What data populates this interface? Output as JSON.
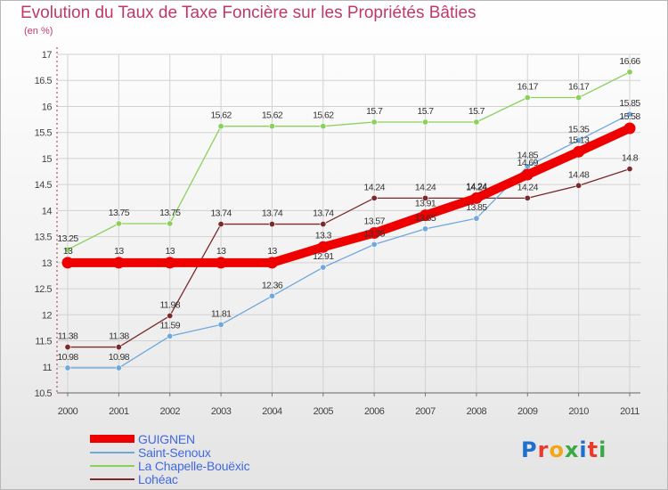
{
  "title": "Evolution du Taux de Taxe Foncière sur les Propriétés Bâties",
  "unit_label": "(en %)",
  "logo": "Proxiti",
  "chart_data": {
    "type": "line",
    "x": [
      2000,
      2001,
      2002,
      2003,
      2004,
      2005,
      2006,
      2007,
      2008,
      2009,
      2010,
      2011
    ],
    "ylim": [
      10.5,
      17
    ],
    "yticks": [
      "10.5",
      "11",
      "11.5",
      "12",
      "12.5",
      "13",
      "13.5",
      "14",
      "14.5",
      "15",
      "15.5",
      "16",
      "16.5",
      "17"
    ],
    "grid": true,
    "legend_position": "bottom-left",
    "series": [
      {
        "name": "GUIGNEN",
        "color": "#ee0000",
        "values": [
          13,
          13,
          13,
          13,
          13,
          13.3,
          13.57,
          13.91,
          14.24,
          14.69,
          15.13,
          15.58
        ],
        "labels": [
          "13",
          "13",
          "13",
          "13",
          "13",
          "13.3",
          "13.57",
          "13.91",
          "14.24",
          "14.69",
          "15.13",
          "15.58"
        ]
      },
      {
        "name": "Saint-Senoux",
        "color": "#6fa8dc",
        "values": [
          10.98,
          10.98,
          11.59,
          11.81,
          12.36,
          12.91,
          13.35,
          13.65,
          13.85,
          14.85,
          15.35,
          15.85
        ],
        "labels": [
          "10.98",
          "10.98",
          "11.59",
          "11.81",
          "12.36",
          "12.91",
          "13.35",
          "13.65",
          "13.85",
          "14.85",
          "15.35",
          "15.85"
        ]
      },
      {
        "name": "La Chapelle-Bouëxic",
        "color": "#8ad15c",
        "values": [
          13.25,
          13.75,
          13.75,
          15.62,
          15.62,
          15.62,
          15.7,
          15.7,
          15.7,
          16.17,
          16.17,
          16.66
        ],
        "labels": [
          "13.25",
          "13.75",
          "13.75",
          "15.62",
          "15.62",
          "15.62",
          "15.7",
          "15.7",
          "15.7",
          "16.17",
          "16.17",
          "16.66"
        ]
      },
      {
        "name": "Lohéac",
        "color": "#7a2a2a",
        "values": [
          11.38,
          11.38,
          11.98,
          13.74,
          13.74,
          13.74,
          14.24,
          14.24,
          14.24,
          14.24,
          14.48,
          14.8
        ],
        "labels": [
          "11.38",
          "11.38",
          "11.98",
          "13.74",
          "13.74",
          "13.74",
          "14.24",
          "14.24",
          "14.24",
          "14.24",
          "14.48",
          "14.8"
        ]
      }
    ]
  },
  "legend_colors": [
    "#ee0000",
    "#6fa8dc",
    "#8ad15c",
    "#7a2a2a"
  ],
  "legend_text_colors": [
    "#4169e1",
    "#4169e1",
    "#4169e1",
    "#4169e1"
  ],
  "logo_letters": [
    {
      "ch": "P",
      "color": "#1f6fd0"
    },
    {
      "ch": "r",
      "color": "#e83b2e"
    },
    {
      "ch": "o",
      "color": "#f2a619"
    },
    {
      "ch": "x",
      "color": "#3aa845"
    },
    {
      "ch": "i",
      "color": "#1f6fd0"
    },
    {
      "ch": "t",
      "color": "#e83b2e"
    },
    {
      "ch": "i",
      "color": "#3aa845"
    }
  ]
}
